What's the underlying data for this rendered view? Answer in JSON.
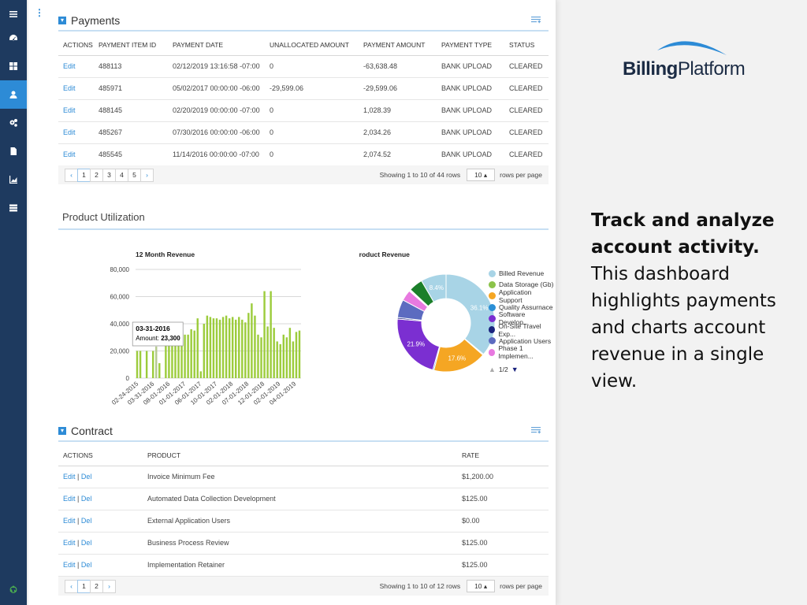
{
  "sidebar": {
    "items": [
      {
        "icon": "menu-icon"
      },
      {
        "icon": "dashboard-icon"
      },
      {
        "icon": "grid-icon"
      },
      {
        "icon": "account-icon"
      },
      {
        "icon": "gears-icon"
      },
      {
        "icon": "document-icon"
      },
      {
        "icon": "chart-icon"
      },
      {
        "icon": "list-icon"
      }
    ],
    "active_index": 3
  },
  "payments": {
    "title": "Payments",
    "columns": [
      "ACTIONS",
      "PAYMENT ITEM ID",
      "PAYMENT DATE",
      "UNALLOCATED AMOUNT",
      "PAYMENT AMOUNT",
      "PAYMENT TYPE",
      "STATUS"
    ],
    "rows": [
      [
        "Edit",
        "488113",
        "02/12/2019 13:16:58 -07:00",
        "0",
        "-63,638.48",
        "BANK UPLOAD",
        "CLEARED"
      ],
      [
        "Edit",
        "485971",
        "05/02/2017 00:00:00 -06:00",
        "-29,599.06",
        "-29,599.06",
        "BANK UPLOAD",
        "CLEARED"
      ],
      [
        "Edit",
        "488145",
        "02/20/2019 00:00:00 -07:00",
        "0",
        "1,028.39",
        "BANK UPLOAD",
        "CLEARED"
      ],
      [
        "Edit",
        "485267",
        "07/30/2016 00:00:00 -06:00",
        "0",
        "2,034.26",
        "BANK UPLOAD",
        "CLEARED"
      ],
      [
        "Edit",
        "485545",
        "11/14/2016 00:00:00 -07:00",
        "0",
        "2,074.52",
        "BANK UPLOAD",
        "CLEARED"
      ]
    ],
    "pager": {
      "prev": "‹",
      "pages": [
        "1",
        "2",
        "3",
        "4",
        "5"
      ],
      "next": "›",
      "showing": "Showing 1 to 10 of 44 rows",
      "rows_per_page": "10 ▴",
      "rows_label": "rows per page"
    }
  },
  "utilization": {
    "title": "Product Utilization"
  },
  "chart_data": [
    {
      "type": "bar",
      "title": "12 Month Revenue",
      "ylim": [
        0,
        80000
      ],
      "yticks": [
        "0",
        "20,000",
        "40,000",
        "60,000",
        "80,000"
      ],
      "xticks": [
        "02-24-2015",
        "03-31-2016",
        "08-01-2016",
        "01-01-2017",
        "06-01-2017",
        "10-01-2017",
        "02-01-2018",
        "07-01-2018",
        "12-01-2018",
        "02-01-2019",
        "04-01-2019"
      ],
      "values": [
        20000,
        20000,
        0,
        20000,
        0,
        20000,
        23300,
        11000,
        0,
        25000,
        25000,
        28000,
        28000,
        29000,
        30000,
        32000,
        32000,
        36000,
        35000,
        44000,
        5000,
        40000,
        46000,
        45000,
        44000,
        44000,
        43000,
        45000,
        46000,
        44000,
        45000,
        43000,
        45000,
        43000,
        41000,
        48000,
        55000,
        46000,
        32000,
        30000,
        64000,
        38000,
        64000,
        37000,
        27000,
        25000,
        32000,
        30000,
        37000,
        27000,
        34000,
        35000
      ],
      "highlight": {
        "index": 6,
        "label": "03-31-2016",
        "amount_text": "Amount: ",
        "amount_value": "23,300"
      }
    },
    {
      "type": "pie",
      "title": "Product Revenue",
      "slices": [
        {
          "name": "Billed Revenue",
          "value": 36.1,
          "label": "36.1%",
          "color": "#a8d4e6"
        },
        {
          "name": "Data Storage (Gb)",
          "value": 0.3,
          "label": "",
          "color": "#8bc34a"
        },
        {
          "name": "Application Support",
          "value": 17.6,
          "label": "17.6%",
          "color": "#f5a623"
        },
        {
          "name": "Quality Assurnace",
          "value": 0.4,
          "label": "",
          "color": "#2a8fd6"
        },
        {
          "name": "Software Develop...",
          "value": 21.9,
          "label": "21.9%",
          "color": "#7b2fd1"
        },
        {
          "name": "On-Site Travel Exp...",
          "value": 0.5,
          "label": "",
          "color": "#1a237e"
        },
        {
          "name": "Application Users",
          "value": 6.0,
          "label": "",
          "color": "#5c6bc0"
        },
        {
          "name": "Phase 1 Implemen...",
          "value": 3.6,
          "label": "",
          "color": "#e879e0"
        },
        {
          "name": "",
          "value": 0.6,
          "label": "",
          "color": "#ffffff"
        },
        {
          "name": "",
          "value": 4.6,
          "label": "",
          "color": "#1b7f2a"
        },
        {
          "name": "",
          "value": 8.4,
          "label": "8.4%",
          "color": "#a8d4e6"
        }
      ],
      "legend_page": "1/2"
    }
  ],
  "contract": {
    "title": "Contract",
    "columns": [
      "ACTIONS",
      "PRODUCT",
      "RATE"
    ],
    "rows": [
      {
        "edit": "Edit",
        "sep": " | ",
        "del": "Del",
        "product": "Invoice Minimum Fee",
        "rate": "$1,200.00"
      },
      {
        "edit": "Edit",
        "sep": " | ",
        "del": "Del",
        "product": "Automated Data Collection Development",
        "rate": "$125.00"
      },
      {
        "edit": "Edit",
        "sep": " | ",
        "del": "Del",
        "product": "External Application Users",
        "rate": "$0.00"
      },
      {
        "edit": "Edit",
        "sep": " | ",
        "del": "Del",
        "product": "Business Process Review",
        "rate": "$125.00"
      },
      {
        "edit": "Edit",
        "sep": " | ",
        "del": "Del",
        "product": "Implementation Retainer",
        "rate": "$125.00"
      }
    ],
    "pager": {
      "prev": "‹",
      "pages": [
        "1",
        "2"
      ],
      "next": "›",
      "showing": "Showing 1 to 10 of 12 rows",
      "rows_per_page": "10 ▴",
      "rows_label": "rows per page"
    }
  },
  "brand": {
    "name_bold": "Billing",
    "name_regular": "Platform",
    "color": "#1b2b44",
    "accent": "#2d8bd6"
  },
  "promo": {
    "headline": "Track and analyze account activity.",
    "body": "This dashboard highlights payments and charts account revenue in a single view."
  }
}
